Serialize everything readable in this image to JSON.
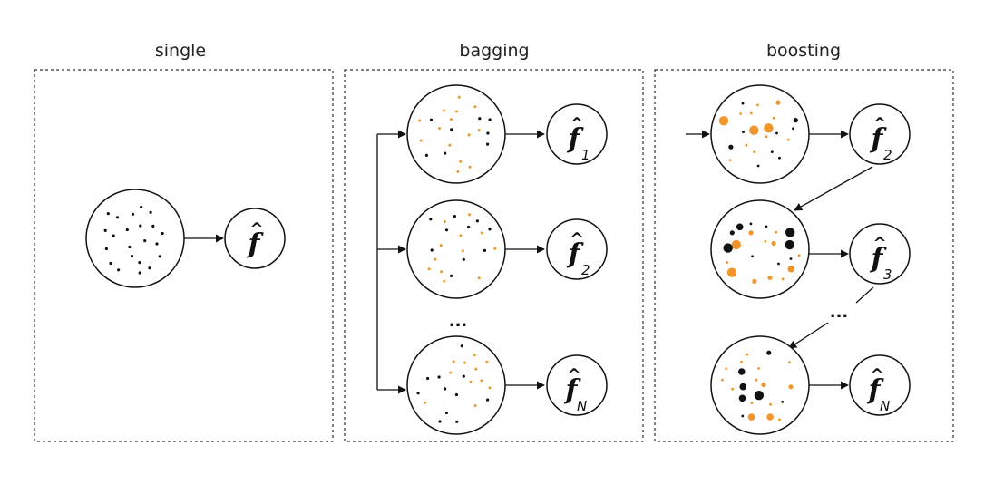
{
  "panels": {
    "single": {
      "title": "single"
    },
    "bagging": {
      "title": "bagging"
    },
    "boosting": {
      "title": "boosting"
    }
  },
  "model": {
    "symbol": "f",
    "hat": "^"
  },
  "subscripts": {
    "bag1": "1",
    "bag2": "2",
    "bagN": "N",
    "boost2": "2",
    "boost3": "3",
    "boostN": "N"
  },
  "ellipsis": "...",
  "colors": {
    "black_point": "#111111",
    "orange_point": "#f0962a",
    "stroke": "#111111"
  }
}
